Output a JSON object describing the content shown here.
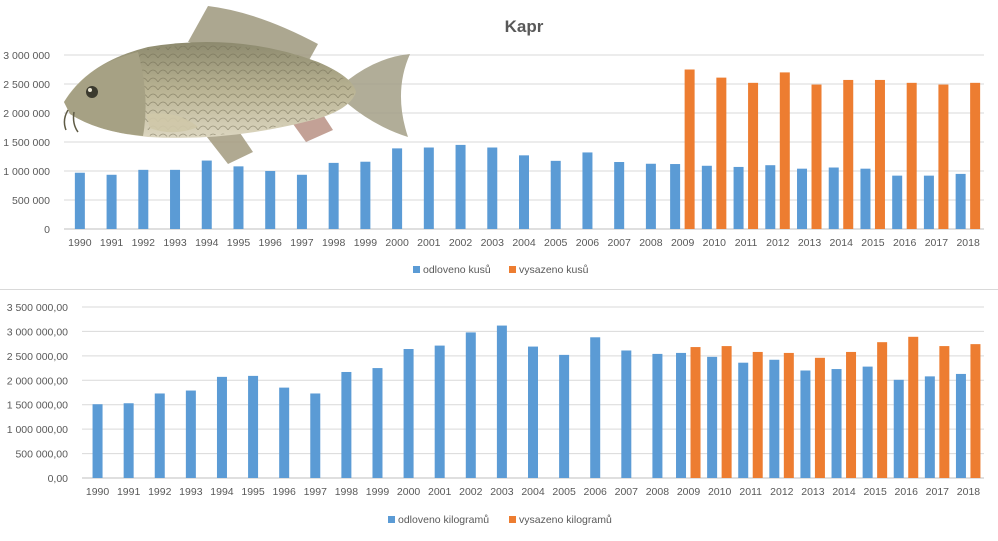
{
  "colors": {
    "series1": "#5b9bd5",
    "series2": "#ed7d31",
    "grid": "#d9d9d9",
    "text": "#595959"
  },
  "charts": [
    {
      "type": "bar",
      "title": "Kapr",
      "categories": [
        "1990",
        "1991",
        "1992",
        "1993",
        "1994",
        "1995",
        "1996",
        "1997",
        "1998",
        "1999",
        "2000",
        "2001",
        "2002",
        "2003",
        "2004",
        "2005",
        "2006",
        "2007",
        "2008",
        "2009",
        "2010",
        "2011",
        "2012",
        "2013",
        "2014",
        "2015",
        "2016",
        "2017",
        "2018"
      ],
      "yticks": [
        "0",
        "500 000",
        "1 000 000",
        "1 500 000",
        "2 000 000",
        "2 500 000",
        "3 000 000"
      ],
      "ylim": [
        0,
        3000000
      ],
      "series": [
        {
          "name": "odloveno kusů",
          "values": [
            970000,
            935000,
            1020000,
            1020000,
            1180000,
            1080000,
            1000000,
            935000,
            1140000,
            1160000,
            1390000,
            1405000,
            1450000,
            1405000,
            1270000,
            1175000,
            1320000,
            1155000,
            1125000,
            1120000,
            1090000,
            1070000,
            1100000,
            1040000,
            1060000,
            1040000,
            920000,
            920000,
            950000
          ]
        },
        {
          "name": "vysazeno kusů",
          "values": [
            null,
            null,
            null,
            null,
            null,
            null,
            null,
            null,
            null,
            null,
            null,
            null,
            null,
            null,
            null,
            null,
            null,
            null,
            null,
            2750000,
            2610000,
            2520000,
            2700000,
            2490000,
            2570000,
            2570000,
            2520000,
            2490000,
            2520000
          ]
        }
      ],
      "legend_position": "bottom",
      "grid": true
    },
    {
      "type": "bar",
      "title": "",
      "categories": [
        "1990",
        "1991",
        "1992",
        "1993",
        "1994",
        "1995",
        "1996",
        "1997",
        "1998",
        "1999",
        "2000",
        "2001",
        "2002",
        "2003",
        "2004",
        "2005",
        "2006",
        "2007",
        "2008",
        "2009",
        "2010",
        "2011",
        "2012",
        "2013",
        "2014",
        "2015",
        "2016",
        "2017",
        "2018"
      ],
      "yticks": [
        "0,00",
        "500 000,00",
        "1 000 000,00",
        "1 500 000,00",
        "2 000 000,00",
        "2 500 000,00",
        "3 000 000,00",
        "3 500 000,00"
      ],
      "ylim": [
        0,
        3500000
      ],
      "series": [
        {
          "name": "odloveno kilogramů",
          "values": [
            1510000,
            1530000,
            1730000,
            1790000,
            2070000,
            2090000,
            1850000,
            1730000,
            2170000,
            2250000,
            2640000,
            2710000,
            2980000,
            3120000,
            2690000,
            2520000,
            2880000,
            2610000,
            2540000,
            2560000,
            2480000,
            2360000,
            2420000,
            2200000,
            2230000,
            2280000,
            2010000,
            2080000,
            2130000
          ]
        },
        {
          "name": "vysazeno kilogramů",
          "values": [
            null,
            null,
            null,
            null,
            null,
            null,
            null,
            null,
            null,
            null,
            null,
            null,
            null,
            null,
            null,
            null,
            null,
            null,
            null,
            2680000,
            2700000,
            2580000,
            2560000,
            2460000,
            2580000,
            2780000,
            2890000,
            2700000,
            2740000
          ]
        }
      ],
      "legend_position": "bottom",
      "grid": true
    }
  ],
  "chart_data": [
    {
      "type": "bar",
      "title": "Kapr",
      "categories": [
        "1990",
        "1991",
        "1992",
        "1993",
        "1994",
        "1995",
        "1996",
        "1997",
        "1998",
        "1999",
        "2000",
        "2001",
        "2002",
        "2003",
        "2004",
        "2005",
        "2006",
        "2007",
        "2008",
        "2009",
        "2010",
        "2011",
        "2012",
        "2013",
        "2014",
        "2015",
        "2016",
        "2017",
        "2018"
      ],
      "ylim": [
        0,
        3000000
      ],
      "series": [
        {
          "name": "odloveno kusů",
          "values": [
            970000,
            935000,
            1020000,
            1020000,
            1180000,
            1080000,
            1000000,
            935000,
            1140000,
            1160000,
            1390000,
            1405000,
            1450000,
            1405000,
            1270000,
            1175000,
            1320000,
            1155000,
            1125000,
            1120000,
            1090000,
            1070000,
            1100000,
            1040000,
            1060000,
            1040000,
            920000,
            920000,
            950000
          ]
        },
        {
          "name": "vysazeno kusů",
          "values": [
            null,
            null,
            null,
            null,
            null,
            null,
            null,
            null,
            null,
            null,
            null,
            null,
            null,
            null,
            null,
            null,
            null,
            null,
            null,
            2750000,
            2610000,
            2520000,
            2700000,
            2490000,
            2570000,
            2570000,
            2520000,
            2490000,
            2520000
          ]
        }
      ]
    },
    {
      "type": "bar",
      "title": "",
      "categories": [
        "1990",
        "1991",
        "1992",
        "1993",
        "1994",
        "1995",
        "1996",
        "1997",
        "1998",
        "1999",
        "2000",
        "2001",
        "2002",
        "2003",
        "2004",
        "2005",
        "2006",
        "2007",
        "2008",
        "2009",
        "2010",
        "2011",
        "2012",
        "2013",
        "2014",
        "2015",
        "2016",
        "2017",
        "2018"
      ],
      "ylim": [
        0,
        3500000
      ],
      "series": [
        {
          "name": "odloveno kilogramů",
          "values": [
            1510000,
            1530000,
            1730000,
            1790000,
            2070000,
            2090000,
            1850000,
            1730000,
            2170000,
            2250000,
            2640000,
            2710000,
            2980000,
            3120000,
            2690000,
            2520000,
            2880000,
            2610000,
            2540000,
            2560000,
            2480000,
            2360000,
            2420000,
            2200000,
            2230000,
            2280000,
            2010000,
            2080000,
            2130000
          ]
        },
        {
          "name": "vysazeno kilogramů",
          "values": [
            null,
            null,
            null,
            null,
            null,
            null,
            null,
            null,
            null,
            null,
            null,
            null,
            null,
            null,
            null,
            null,
            null,
            null,
            null,
            2680000,
            2700000,
            2580000,
            2560000,
            2460000,
            2580000,
            2780000,
            2890000,
            2700000,
            2740000
          ]
        }
      ]
    }
  ]
}
